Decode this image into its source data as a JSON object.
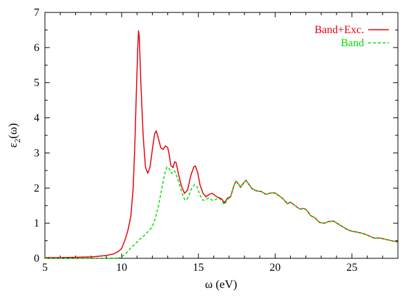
{
  "chart_data": {
    "type": "line",
    "xlabel": "ω (eV)",
    "ylabel": "ε₂(ω)",
    "xlim": [
      5,
      28
    ],
    "ylim": [
      0,
      7
    ],
    "xticks": [
      5,
      10,
      15,
      20,
      25
    ],
    "yticks": [
      0,
      1,
      2,
      3,
      4,
      5,
      6,
      7
    ],
    "grid": false,
    "legend_position": "top-right",
    "series": [
      {
        "name": "Band+Exc.",
        "color": "#e8000b",
        "dash": "solid",
        "points": [
          [
            5.0,
            0.02
          ],
          [
            6.0,
            0.02
          ],
          [
            7.0,
            0.03
          ],
          [
            8.0,
            0.04
          ],
          [
            8.5,
            0.06
          ],
          [
            9.0,
            0.08
          ],
          [
            9.5,
            0.13
          ],
          [
            9.8,
            0.2
          ],
          [
            10.0,
            0.28
          ],
          [
            10.2,
            0.5
          ],
          [
            10.4,
            0.78
          ],
          [
            10.6,
            1.2
          ],
          [
            10.75,
            2.0
          ],
          [
            10.85,
            3.1
          ],
          [
            10.95,
            4.6
          ],
          [
            11.05,
            6.0
          ],
          [
            11.1,
            6.48
          ],
          [
            11.15,
            6.3
          ],
          [
            11.25,
            5.0
          ],
          [
            11.4,
            3.5
          ],
          [
            11.55,
            2.6
          ],
          [
            11.7,
            2.42
          ],
          [
            11.85,
            2.6
          ],
          [
            12.0,
            3.1
          ],
          [
            12.15,
            3.55
          ],
          [
            12.25,
            3.63
          ],
          [
            12.4,
            3.4
          ],
          [
            12.55,
            3.15
          ],
          [
            12.7,
            3.1
          ],
          [
            12.85,
            3.2
          ],
          [
            13.0,
            3.15
          ],
          [
            13.1,
            2.95
          ],
          [
            13.2,
            2.65
          ],
          [
            13.35,
            2.58
          ],
          [
            13.45,
            2.75
          ],
          [
            13.55,
            2.72
          ],
          [
            13.7,
            2.4
          ],
          [
            13.9,
            2.05
          ],
          [
            14.1,
            1.85
          ],
          [
            14.3,
            1.95
          ],
          [
            14.5,
            2.35
          ],
          [
            14.7,
            2.6
          ],
          [
            14.8,
            2.63
          ],
          [
            14.95,
            2.45
          ],
          [
            15.1,
            2.1
          ],
          [
            15.3,
            1.85
          ],
          [
            15.5,
            1.75
          ],
          [
            15.7,
            1.82
          ],
          [
            15.9,
            1.85
          ],
          [
            16.1,
            1.78
          ],
          [
            16.3,
            1.73
          ],
          [
            16.5,
            1.7
          ],
          [
            16.7,
            1.58
          ],
          [
            16.9,
            1.72
          ],
          [
            17.1,
            1.75
          ],
          [
            17.3,
            2.05
          ],
          [
            17.45,
            2.2
          ],
          [
            17.6,
            2.12
          ],
          [
            17.75,
            2.02
          ],
          [
            17.95,
            2.15
          ],
          [
            18.1,
            2.22
          ],
          [
            18.3,
            2.1
          ],
          [
            18.5,
            1.98
          ],
          [
            18.8,
            1.92
          ],
          [
            19.1,
            1.9
          ],
          [
            19.4,
            1.82
          ],
          [
            19.7,
            1.86
          ],
          [
            20.0,
            1.86
          ],
          [
            20.2,
            1.8
          ],
          [
            20.5,
            1.7
          ],
          [
            20.8,
            1.55
          ],
          [
            21.0,
            1.6
          ],
          [
            21.3,
            1.5
          ],
          [
            21.6,
            1.4
          ],
          [
            21.9,
            1.42
          ],
          [
            22.1,
            1.35
          ],
          [
            22.3,
            1.22
          ],
          [
            22.6,
            1.15
          ],
          [
            22.9,
            1.02
          ],
          [
            23.2,
            1.0
          ],
          [
            23.5,
            1.05
          ],
          [
            23.8,
            1.06
          ],
          [
            24.1,
            0.98
          ],
          [
            24.4,
            0.9
          ],
          [
            24.7,
            0.82
          ],
          [
            25.0,
            0.77
          ],
          [
            25.3,
            0.75
          ],
          [
            25.6,
            0.72
          ],
          [
            25.9,
            0.68
          ],
          [
            26.2,
            0.62
          ],
          [
            26.5,
            0.57
          ],
          [
            26.8,
            0.58
          ],
          [
            27.1,
            0.55
          ],
          [
            27.4,
            0.52
          ],
          [
            27.7,
            0.49
          ],
          [
            28.0,
            0.47
          ]
        ]
      },
      {
        "name": "Band",
        "color": "#00dd00",
        "dash": "dashed",
        "points": [
          [
            5.0,
            0.0
          ],
          [
            9.5,
            0.0
          ],
          [
            9.8,
            0.01
          ],
          [
            10.0,
            0.04
          ],
          [
            10.3,
            0.15
          ],
          [
            10.6,
            0.3
          ],
          [
            10.9,
            0.42
          ],
          [
            11.2,
            0.55
          ],
          [
            11.5,
            0.66
          ],
          [
            11.8,
            0.8
          ],
          [
            12.0,
            0.9
          ],
          [
            12.2,
            1.15
          ],
          [
            12.4,
            1.5
          ],
          [
            12.6,
            1.95
          ],
          [
            12.8,
            2.4
          ],
          [
            12.95,
            2.6
          ],
          [
            13.1,
            2.55
          ],
          [
            13.25,
            2.42
          ],
          [
            13.4,
            2.5
          ],
          [
            13.5,
            2.45
          ],
          [
            13.7,
            2.2
          ],
          [
            13.9,
            1.9
          ],
          [
            14.1,
            1.68
          ],
          [
            14.2,
            1.65
          ],
          [
            14.35,
            1.75
          ],
          [
            14.55,
            1.98
          ],
          [
            14.75,
            2.1
          ],
          [
            14.9,
            2.05
          ],
          [
            15.1,
            1.8
          ],
          [
            15.3,
            1.65
          ],
          [
            15.5,
            1.68
          ],
          [
            15.7,
            1.72
          ],
          [
            15.9,
            1.65
          ],
          [
            16.1,
            1.67
          ],
          [
            16.3,
            1.72
          ],
          [
            16.5,
            1.65
          ],
          [
            16.7,
            1.53
          ],
          [
            16.9,
            1.68
          ],
          [
            17.1,
            1.75
          ],
          [
            17.3,
            2.05
          ],
          [
            17.45,
            2.2
          ],
          [
            17.6,
            2.12
          ],
          [
            17.75,
            2.02
          ],
          [
            17.95,
            2.15
          ],
          [
            18.1,
            2.22
          ],
          [
            18.3,
            2.1
          ],
          [
            18.5,
            1.98
          ],
          [
            18.8,
            1.92
          ],
          [
            19.1,
            1.9
          ],
          [
            19.4,
            1.82
          ],
          [
            19.7,
            1.86
          ],
          [
            20.0,
            1.86
          ],
          [
            20.2,
            1.8
          ],
          [
            20.5,
            1.7
          ],
          [
            20.8,
            1.55
          ],
          [
            21.0,
            1.6
          ],
          [
            21.3,
            1.5
          ],
          [
            21.6,
            1.4
          ],
          [
            21.9,
            1.42
          ],
          [
            22.1,
            1.35
          ],
          [
            22.3,
            1.22
          ],
          [
            22.6,
            1.15
          ],
          [
            22.9,
            1.02
          ],
          [
            23.2,
            1.0
          ],
          [
            23.5,
            1.05
          ],
          [
            23.8,
            1.06
          ],
          [
            24.1,
            0.98
          ],
          [
            24.4,
            0.9
          ],
          [
            24.7,
            0.82
          ],
          [
            25.0,
            0.77
          ],
          [
            25.3,
            0.75
          ],
          [
            25.6,
            0.72
          ],
          [
            25.9,
            0.68
          ],
          [
            26.2,
            0.62
          ],
          [
            26.5,
            0.57
          ],
          [
            26.8,
            0.58
          ],
          [
            27.1,
            0.55
          ],
          [
            27.4,
            0.52
          ],
          [
            27.7,
            0.49
          ],
          [
            28.0,
            0.47
          ]
        ]
      }
    ]
  }
}
